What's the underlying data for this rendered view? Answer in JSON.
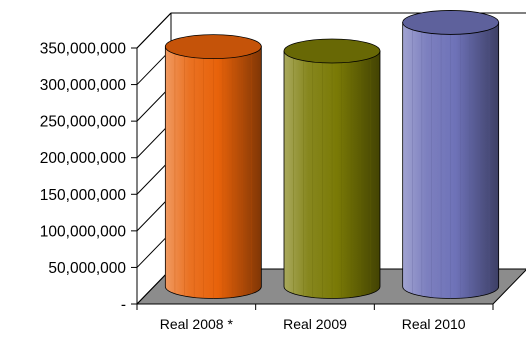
{
  "chart_data": {
    "type": "bar",
    "style": "3d-cylinder",
    "categories": [
      "Real 2008 *",
      "Real 2009",
      "Real 2010"
    ],
    "values": [
      328000000,
      322000000,
      361000000
    ],
    "ylim": [
      0,
      350000000
    ],
    "y_tick_values": [
      0,
      50000000,
      100000000,
      150000000,
      200000000,
      250000000,
      300000000,
      350000000
    ],
    "y_tick_labels": [
      "-",
      "50,000,000",
      "100,000,000",
      "150,000,000",
      "200,000,000",
      "250,000,000",
      "300,000,000",
      "350,000,000"
    ],
    "colors": [
      "#E8620A",
      "#7A7A06",
      "#6E72B8"
    ],
    "grid": false,
    "legend": "none"
  }
}
